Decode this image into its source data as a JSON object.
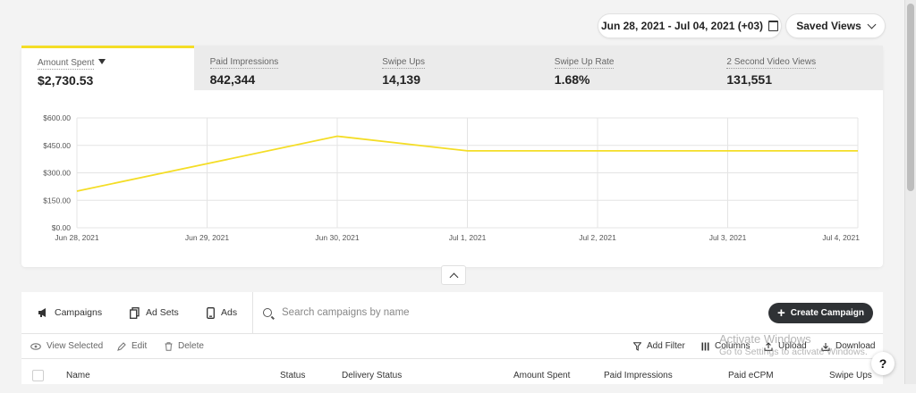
{
  "date_range": {
    "label": "Jun 28, 2021 - Jul 04, 2021 (+03)"
  },
  "saved_views": {
    "label": "Saved Views"
  },
  "metrics": [
    {
      "label": "Amount Spent",
      "value": "$2,730.53",
      "active": true
    },
    {
      "label": "Paid Impressions",
      "value": "842,344"
    },
    {
      "label": "Swipe Ups",
      "value": "14,139"
    },
    {
      "label": "Swipe Up Rate",
      "value": "1.68%"
    },
    {
      "label": "2 Second Video Views",
      "value": "131,551"
    }
  ],
  "chart_data": {
    "type": "line",
    "categories": [
      "Jun 28, 2021",
      "Jun 29, 2021",
      "Jun 30, 2021",
      "Jul 1, 2021",
      "Jul 2, 2021",
      "Jul 3, 2021",
      "Jul 4, 2021"
    ],
    "yticks": [
      "$0.00",
      "$150.00",
      "$300.00",
      "$450.00",
      "$600.00"
    ],
    "ylim": [
      0,
      600
    ],
    "series": [
      {
        "values": [
          200,
          350,
          500,
          420,
          420,
          420,
          420
        ],
        "color": "#f4dd26"
      }
    ],
    "grid": true
  },
  "tabs": [
    {
      "label": "Campaigns",
      "icon": "megaphone-icon"
    },
    {
      "label": "Ad Sets",
      "icon": "stack-icon"
    },
    {
      "label": "Ads",
      "icon": "phone-icon"
    }
  ],
  "search": {
    "placeholder": "Search campaigns by name"
  },
  "create_button": {
    "label": "Create Campaign"
  },
  "toolbar": {
    "view_selected": "View Selected",
    "edit": "Edit",
    "delete": "Delete",
    "add_filter": "Add Filter",
    "columns": "Columns",
    "upload": "Upload",
    "download": "Download"
  },
  "columns": [
    "Name",
    "Status",
    "Delivery Status",
    "Amount Spent",
    "Paid Impressions",
    "Paid eCPM",
    "Swipe Ups"
  ],
  "watermark": {
    "line1": "Activate Windows",
    "line2": "Go to Settings to activate Windows."
  },
  "colors": {
    "accent": "#f4dd26",
    "button_dark": "#2f3235"
  }
}
